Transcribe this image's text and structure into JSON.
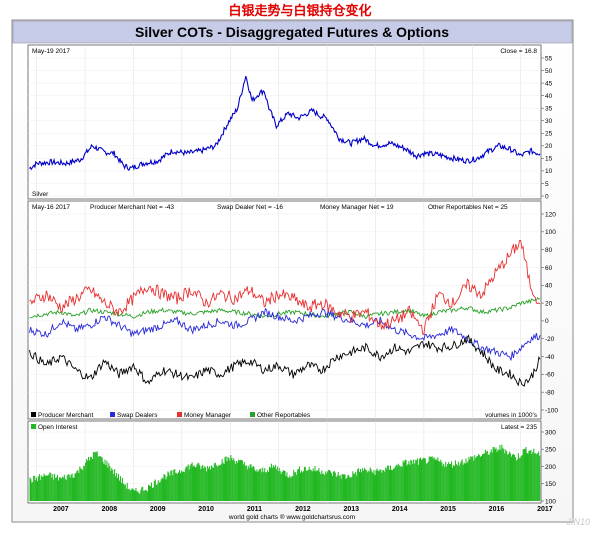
{
  "header_cn": "白银走势与白银持仓变化",
  "title": "Silver COTs - Disaggregated Futures & Options",
  "footer": "world gold charts ® www.goldchartsrus.com",
  "watermark": "JIN10",
  "colors": {
    "price": "#0000c8",
    "producer": "#000000",
    "swap": "#2a2ad8",
    "money": "#e83030",
    "other": "#2aa02a",
    "oi_fill": "#22b822",
    "title_bar": "#c6cbe8",
    "header_cn": "#e00000"
  },
  "chart_data": [
    {
      "type": "line",
      "panel": "price",
      "date_label": "May-19 2017",
      "close_label": "Close = 16.8",
      "series_label": "Silver",
      "ylim": [
        0,
        55
      ],
      "yticks": [
        0,
        5,
        10,
        15,
        20,
        25,
        30,
        35,
        40,
        45,
        50,
        55
      ],
      "x_range": [
        2006.82,
        2017.42
      ],
      "series": [
        {
          "name": "Silver",
          "x": [
            2006.85,
            2007.0,
            2007.3,
            2007.6,
            2007.9,
            2008.15,
            2008.4,
            2008.6,
            2008.8,
            2008.95,
            2009.2,
            2009.5,
            2009.8,
            2010.1,
            2010.4,
            2010.7,
            2010.95,
            2011.15,
            2011.32,
            2011.45,
            2011.6,
            2011.7,
            2011.8,
            2011.95,
            2012.2,
            2012.4,
            2012.7,
            2012.85,
            2013.0,
            2013.25,
            2013.5,
            2013.75,
            2014.0,
            2014.3,
            2014.6,
            2014.85,
            2015.0,
            2015.3,
            2015.6,
            2015.9,
            2016.1,
            2016.35,
            2016.55,
            2016.8,
            2017.0,
            2017.2,
            2017.4
          ],
          "values": [
            11,
            13,
            13.5,
            13,
            14.5,
            20,
            17.5,
            17,
            12,
            11,
            13,
            14,
            18,
            17,
            18,
            20,
            29,
            35,
            48,
            38,
            41,
            42,
            35,
            28,
            33,
            31,
            34,
            32,
            31,
            23,
            21,
            23,
            20,
            21,
            19,
            16,
            17,
            16.5,
            15,
            14,
            15,
            18,
            20,
            18.5,
            16,
            18,
            16.8
          ]
        }
      ]
    },
    {
      "type": "line",
      "panel": "cot",
      "date_label": "May-16 2017",
      "header_labels": [
        "Producer Merchant Net = -43",
        "Swap Dealer Net = -16",
        "Money Manager Net = 19",
        "Other Reportables Net = 25"
      ],
      "ylim": [
        -100,
        120
      ],
      "yticks": [
        -100,
        -80,
        -60,
        -40,
        -20,
        0,
        20,
        40,
        60,
        80,
        100,
        120
      ],
      "x_range": [
        2006.82,
        2017.42
      ],
      "legend": [
        "Producer Merchant",
        "Swap Dealers",
        "Money Manager",
        "Other Reportables"
      ],
      "units_note": "volumes in 1000's",
      "series": [
        {
          "name": "Producer Merchant",
          "x": [
            2006.85,
            2007.2,
            2007.5,
            2007.8,
            2008.1,
            2008.4,
            2008.7,
            2009.0,
            2009.3,
            2009.6,
            2009.9,
            2010.2,
            2010.5,
            2010.8,
            2011.1,
            2011.4,
            2011.7,
            2012.0,
            2012.3,
            2012.6,
            2012.9,
            2013.2,
            2013.5,
            2013.8,
            2014.1,
            2014.4,
            2014.7,
            2015.0,
            2015.3,
            2015.6,
            2015.9,
            2016.2,
            2016.5,
            2016.8,
            2017.0,
            2017.2,
            2017.4
          ],
          "values": [
            -35,
            -50,
            -40,
            -55,
            -65,
            -45,
            -60,
            -50,
            -70,
            -55,
            -60,
            -65,
            -55,
            -60,
            -50,
            -45,
            -55,
            -50,
            -60,
            -50,
            -55,
            -40,
            -35,
            -30,
            -40,
            -30,
            -35,
            -25,
            -30,
            -28,
            -20,
            -35,
            -55,
            -60,
            -70,
            -65,
            -43
          ]
        },
        {
          "name": "Swap Dealers",
          "x": [
            2006.85,
            2007.2,
            2007.5,
            2007.8,
            2008.1,
            2008.4,
            2008.7,
            2009.0,
            2009.3,
            2009.6,
            2009.9,
            2010.2,
            2010.5,
            2010.8,
            2011.1,
            2011.4,
            2011.7,
            2012.0,
            2012.3,
            2012.6,
            2012.9,
            2013.2,
            2013.5,
            2013.8,
            2014.1,
            2014.4,
            2014.7,
            2015.0,
            2015.3,
            2015.6,
            2015.9,
            2016.2,
            2016.5,
            2016.8,
            2017.0,
            2017.2,
            2017.4
          ],
          "values": [
            -10,
            -15,
            0,
            -10,
            -5,
            5,
            -5,
            -15,
            -10,
            -5,
            0,
            -10,
            -5,
            0,
            -5,
            0,
            10,
            5,
            0,
            5,
            10,
            5,
            0,
            -5,
            0,
            -10,
            -15,
            -20,
            -15,
            -10,
            -20,
            -30,
            -35,
            -40,
            -30,
            -20,
            -16
          ]
        },
        {
          "name": "Money Manager",
          "x": [
            2006.85,
            2007.2,
            2007.5,
            2007.8,
            2008.1,
            2008.4,
            2008.7,
            2009.0,
            2009.3,
            2009.6,
            2009.9,
            2010.2,
            2010.5,
            2010.8,
            2011.1,
            2011.4,
            2011.7,
            2012.0,
            2012.3,
            2012.6,
            2012.9,
            2013.2,
            2013.5,
            2013.8,
            2014.1,
            2014.4,
            2014.7,
            2015.0,
            2015.3,
            2015.6,
            2015.9,
            2016.2,
            2016.5,
            2016.8,
            2017.0,
            2017.2,
            2017.4
          ],
          "values": [
            20,
            30,
            15,
            25,
            35,
            20,
            10,
            25,
            40,
            30,
            25,
            35,
            20,
            30,
            25,
            35,
            20,
            30,
            25,
            15,
            20,
            10,
            5,
            10,
            -5,
            0,
            10,
            -10,
            30,
            20,
            40,
            30,
            55,
            75,
            90,
            40,
            19
          ]
        },
        {
          "name": "Other Reportables",
          "x": [
            2006.85,
            2007.2,
            2007.5,
            2007.8,
            2008.1,
            2008.4,
            2008.7,
            2009.0,
            2009.3,
            2009.6,
            2009.9,
            2010.2,
            2010.5,
            2010.8,
            2011.1,
            2011.4,
            2011.7,
            2012.0,
            2012.3,
            2012.6,
            2012.9,
            2013.2,
            2013.5,
            2013.8,
            2014.1,
            2014.4,
            2014.7,
            2015.0,
            2015.3,
            2015.6,
            2015.9,
            2016.2,
            2016.5,
            2016.8,
            2017.0,
            2017.2,
            2017.4
          ],
          "values": [
            5,
            8,
            10,
            5,
            12,
            10,
            8,
            5,
            10,
            12,
            10,
            8,
            10,
            12,
            10,
            8,
            5,
            8,
            10,
            8,
            5,
            8,
            10,
            5,
            8,
            10,
            12,
            5,
            10,
            12,
            15,
            10,
            12,
            15,
            20,
            22,
            25
          ]
        }
      ]
    },
    {
      "type": "bar",
      "panel": "open_interest",
      "legend": [
        "Open Interest"
      ],
      "latest_label": "Latest = 235",
      "ylim": [
        100,
        300
      ],
      "yticks": [
        100,
        150,
        200,
        250,
        300
      ],
      "x_range": [
        2006.82,
        2017.42
      ],
      "xticks": [
        "2007",
        "2008",
        "2009",
        "2010",
        "2011",
        "2012",
        "2013",
        "2014",
        "2015",
        "2016",
        "2017"
      ],
      "series": [
        {
          "name": "Open Interest",
          "x": [
            2006.85,
            2007.2,
            2007.5,
            2007.8,
            2008.0,
            2008.2,
            2008.5,
            2008.8,
            2009.0,
            2009.3,
            2009.6,
            2009.9,
            2010.2,
            2010.5,
            2010.8,
            2011.0,
            2011.3,
            2011.6,
            2011.9,
            2012.2,
            2012.5,
            2012.8,
            2013.1,
            2013.4,
            2013.7,
            2014.0,
            2014.3,
            2014.6,
            2014.9,
            2015.2,
            2015.5,
            2015.8,
            2016.0,
            2016.3,
            2016.6,
            2016.9,
            2017.1,
            2017.4
          ],
          "values": [
            160,
            175,
            165,
            180,
            210,
            240,
            200,
            150,
            125,
            140,
            170,
            185,
            205,
            195,
            215,
            225,
            205,
            185,
            200,
            175,
            195,
            190,
            180,
            170,
            190,
            185,
            195,
            210,
            215,
            220,
            205,
            215,
            225,
            240,
            255,
            225,
            250,
            235
          ]
        }
      ]
    }
  ]
}
